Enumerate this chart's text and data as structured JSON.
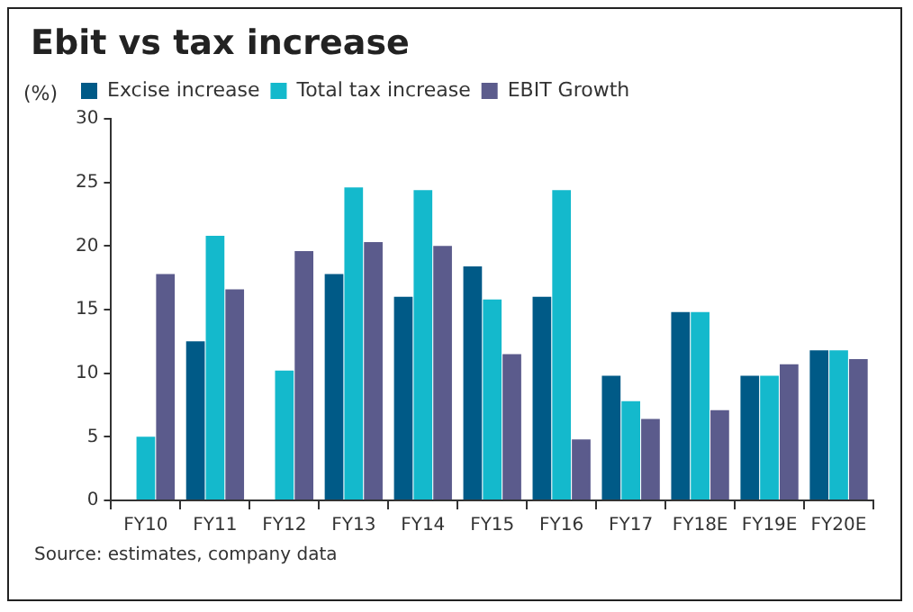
{
  "chart_data": {
    "type": "bar",
    "title": "Ebit vs tax increase",
    "ylabel": "(%)",
    "categories": [
      "FY10",
      "FY11",
      "FY12",
      "FY13",
      "FY14",
      "FY15",
      "FY16",
      "FY17",
      "FY18E",
      "FY19E",
      "FY20E"
    ],
    "series": [
      {
        "name": "Excise increase",
        "color": "#005a87",
        "values": [
          null,
          12.5,
          null,
          17.8,
          16.0,
          18.4,
          16.0,
          9.8,
          14.8,
          9.8,
          11.8
        ]
      },
      {
        "name": "Total tax increase",
        "color": "#14b9cc",
        "values": [
          5.0,
          20.8,
          10.2,
          24.6,
          24.4,
          15.8,
          24.4,
          7.8,
          14.8,
          9.8,
          11.8
        ]
      },
      {
        "name": "EBIT Growth",
        "color": "#5b5b8c",
        "values": [
          17.8,
          16.6,
          19.6,
          20.3,
          20.0,
          11.5,
          4.8,
          6.4,
          7.1,
          10.7,
          11.1
        ]
      }
    ],
    "ylim": [
      0,
      30
    ],
    "yticks": [
      0,
      5,
      10,
      15,
      20,
      25,
      30
    ],
    "grid": false,
    "legend": "top",
    "annotations": [
      "Source: estimates, company data"
    ]
  }
}
